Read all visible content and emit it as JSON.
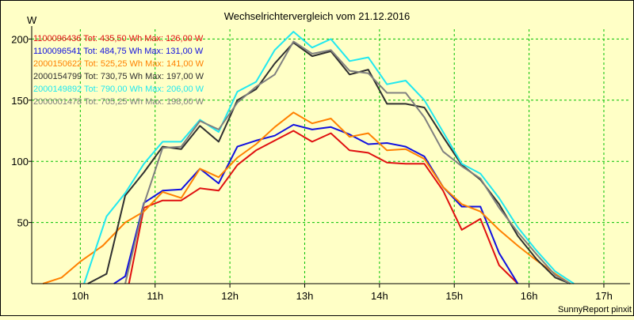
{
  "chart_data": {
    "type": "line",
    "title": "Wechselrichtervergleich vom 21.12.2016",
    "ylabel": "W",
    "xlabel": "",
    "footer": "SunnyReport pinxit",
    "ylim": [
      0,
      208
    ],
    "xlim": [
      9.35,
      17.35
    ],
    "x_ticks": [
      10,
      11,
      12,
      13,
      14,
      15,
      16,
      17
    ],
    "x_tick_labels": [
      "10h",
      "11h",
      "12h",
      "13h",
      "14h",
      "15h",
      "16h",
      "17h"
    ],
    "y_ticks": [
      50,
      100,
      150,
      200
    ],
    "y_tick_labels": [
      "50",
      "100",
      "150",
      "200"
    ],
    "grid": true,
    "legend_position": "top-left",
    "series": [
      {
        "name": "1100096436 Tot: 435,50 Wh Max: 126,00 W",
        "color": "#e01010",
        "points": [
          [
            10.65,
            0
          ],
          [
            10.85,
            62
          ],
          [
            11.1,
            68
          ],
          [
            11.35,
            68
          ],
          [
            11.6,
            78
          ],
          [
            11.85,
            76
          ],
          [
            12.1,
            97
          ],
          [
            12.35,
            109
          ],
          [
            12.6,
            117
          ],
          [
            12.85,
            125
          ],
          [
            13.1,
            116
          ],
          [
            13.35,
            123
          ],
          [
            13.6,
            109
          ],
          [
            13.85,
            107
          ],
          [
            14.1,
            99
          ],
          [
            14.35,
            98
          ],
          [
            14.6,
            98
          ],
          [
            14.85,
            76
          ],
          [
            15.1,
            44
          ],
          [
            15.35,
            53
          ],
          [
            15.6,
            15
          ],
          [
            15.85,
            0
          ]
        ]
      },
      {
        "name": "1100096541 Tot: 484,75 Wh Max: 131,00 W",
        "color": "#1010e0",
        "points": [
          [
            10.45,
            0
          ],
          [
            10.6,
            6
          ],
          [
            10.85,
            66
          ],
          [
            11.1,
            76
          ],
          [
            11.35,
            77
          ],
          [
            11.6,
            94
          ],
          [
            11.85,
            82
          ],
          [
            12.1,
            112
          ],
          [
            12.35,
            117
          ],
          [
            12.6,
            121
          ],
          [
            12.85,
            130
          ],
          [
            13.1,
            126
          ],
          [
            13.35,
            128
          ],
          [
            13.6,
            122
          ],
          [
            13.85,
            114
          ],
          [
            14.1,
            115
          ],
          [
            14.35,
            112
          ],
          [
            14.6,
            104
          ],
          [
            14.85,
            79
          ],
          [
            15.1,
            63
          ],
          [
            15.35,
            63
          ],
          [
            15.6,
            25
          ],
          [
            15.85,
            0
          ]
        ]
      },
      {
        "name": "2000150622 Tot: 525,25 Wh Max: 141,00 W",
        "color": "#ff8000",
        "points": [
          [
            9.5,
            0
          ],
          [
            9.75,
            5
          ],
          [
            10.0,
            18
          ],
          [
            10.3,
            31
          ],
          [
            10.6,
            50
          ],
          [
            10.85,
            59
          ],
          [
            11.1,
            75
          ],
          [
            11.35,
            70
          ],
          [
            11.6,
            94
          ],
          [
            11.85,
            87
          ],
          [
            12.1,
            103
          ],
          [
            12.35,
            114
          ],
          [
            12.6,
            128
          ],
          [
            12.85,
            140
          ],
          [
            13.1,
            131
          ],
          [
            13.35,
            135
          ],
          [
            13.6,
            120
          ],
          [
            13.85,
            123
          ],
          [
            14.1,
            109
          ],
          [
            14.35,
            110
          ],
          [
            14.6,
            102
          ],
          [
            14.85,
            79
          ],
          [
            15.1,
            65
          ],
          [
            15.35,
            59
          ],
          [
            15.6,
            44
          ],
          [
            15.85,
            31
          ],
          [
            16.1,
            19
          ],
          [
            16.35,
            8
          ],
          [
            16.55,
            0
          ]
        ]
      },
      {
        "name": "2000154799 Tot: 730,75 Wh Max: 197,00 W",
        "color": "#303030",
        "points": [
          [
            10.1,
            0
          ],
          [
            10.35,
            8
          ],
          [
            10.6,
            72
          ],
          [
            10.85,
            91
          ],
          [
            11.1,
            112
          ],
          [
            11.35,
            110
          ],
          [
            11.6,
            129
          ],
          [
            11.85,
            116
          ],
          [
            12.1,
            150
          ],
          [
            12.35,
            159
          ],
          [
            12.6,
            180
          ],
          [
            12.85,
            197
          ],
          [
            13.1,
            186
          ],
          [
            13.35,
            190
          ],
          [
            13.6,
            171
          ],
          [
            13.85,
            175
          ],
          [
            14.1,
            147
          ],
          [
            14.35,
            147
          ],
          [
            14.6,
            144
          ],
          [
            14.85,
            120
          ],
          [
            15.1,
            97
          ],
          [
            15.35,
            85
          ],
          [
            15.6,
            65
          ],
          [
            15.85,
            39
          ],
          [
            16.1,
            20
          ],
          [
            16.35,
            5
          ],
          [
            16.55,
            0
          ]
        ]
      },
      {
        "name": "2000149892 Tot: 790,00 Wh Max: 206,00 W",
        "color": "#20e8f0",
        "points": [
          [
            10.05,
            0
          ],
          [
            10.35,
            55
          ],
          [
            10.6,
            74
          ],
          [
            10.85,
            98
          ],
          [
            11.1,
            116
          ],
          [
            11.35,
            116
          ],
          [
            11.6,
            134
          ],
          [
            11.85,
            124
          ],
          [
            12.1,
            157
          ],
          [
            12.35,
            165
          ],
          [
            12.6,
            191
          ],
          [
            12.85,
            206
          ],
          [
            13.1,
            193
          ],
          [
            13.35,
            200
          ],
          [
            13.6,
            182
          ],
          [
            13.85,
            185
          ],
          [
            14.1,
            163
          ],
          [
            14.35,
            166
          ],
          [
            14.6,
            150
          ],
          [
            14.85,
            124
          ],
          [
            15.1,
            98
          ],
          [
            15.35,
            90
          ],
          [
            15.6,
            70
          ],
          [
            15.85,
            46
          ],
          [
            16.1,
            27
          ],
          [
            16.35,
            10
          ],
          [
            16.6,
            0
          ]
        ]
      },
      {
        "name": "2000001478 Tot: 705,25 Wh Max: 198,00 W",
        "color": "#808080",
        "points": [
          [
            10.6,
            0
          ],
          [
            10.85,
            65
          ],
          [
            11.1,
            111
          ],
          [
            11.35,
            112
          ],
          [
            11.6,
            133
          ],
          [
            11.85,
            126
          ],
          [
            12.1,
            148
          ],
          [
            12.35,
            161
          ],
          [
            12.6,
            171
          ],
          [
            12.85,
            198
          ],
          [
            13.1,
            188
          ],
          [
            13.35,
            191
          ],
          [
            13.6,
            174
          ],
          [
            13.85,
            172
          ],
          [
            14.1,
            156
          ],
          [
            14.35,
            156
          ],
          [
            14.6,
            136
          ],
          [
            14.85,
            108
          ],
          [
            15.1,
            96
          ],
          [
            15.35,
            86
          ],
          [
            15.6,
            62
          ],
          [
            15.85,
            42
          ],
          [
            16.1,
            24
          ],
          [
            16.35,
            7
          ],
          [
            16.55,
            0
          ]
        ]
      }
    ]
  }
}
